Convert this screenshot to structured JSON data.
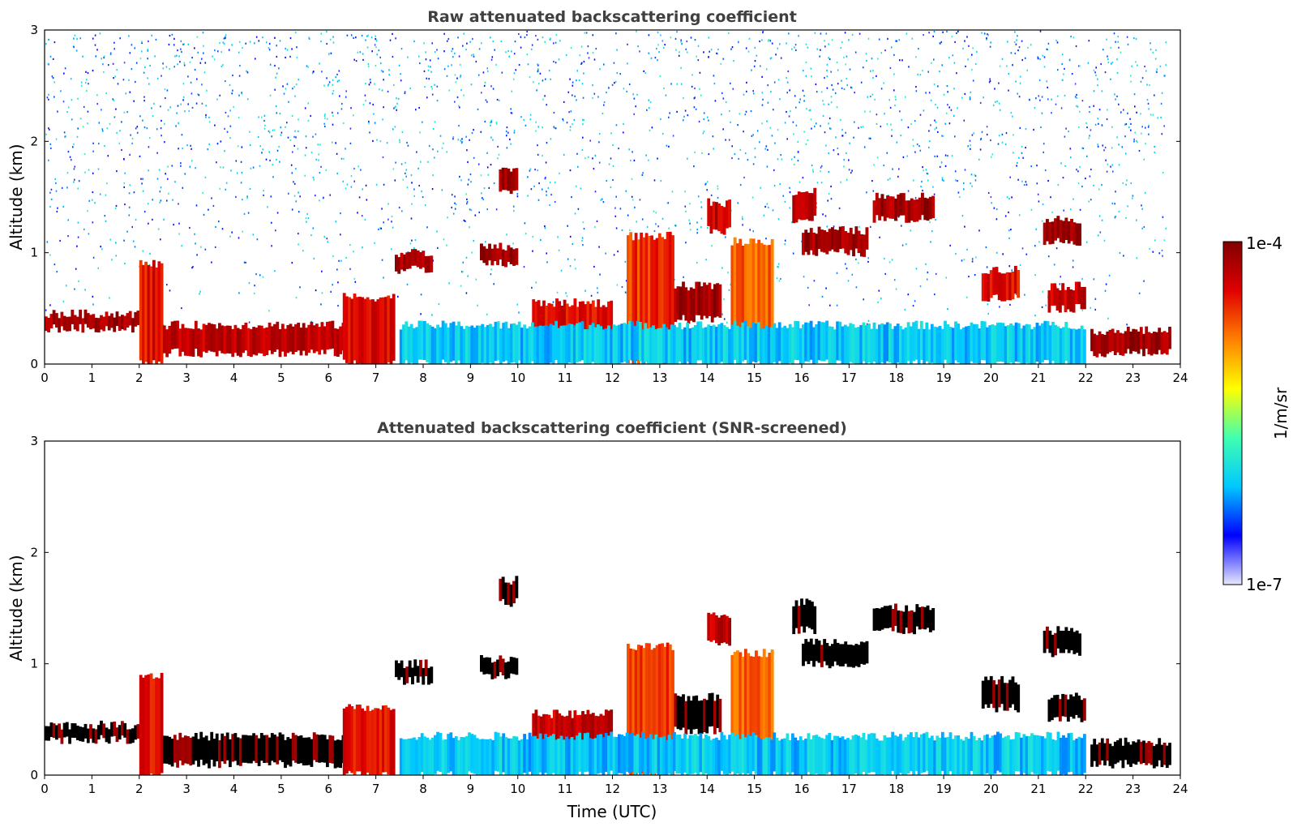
{
  "chart_data": [
    {
      "type": "heatmap",
      "title": "Raw attenuated backscattering coefficient",
      "xlabel": "",
      "ylabel": "Altitude (km)",
      "xlim": [
        0,
        24
      ],
      "ylim": [
        0,
        3
      ],
      "xticks": [
        "0",
        "1",
        "2",
        "3",
        "4",
        "5",
        "6",
        "7",
        "8",
        "9",
        "10",
        "11",
        "12",
        "13",
        "14",
        "15",
        "16",
        "17",
        "18",
        "19",
        "20",
        "21",
        "22",
        "23",
        "24"
      ],
      "yticks": [
        "0",
        "1",
        "2",
        "3"
      ],
      "noise": "high",
      "layers": [
        {
          "x": [
            0,
            2.0
          ],
          "y": [
            0.32,
            0.45
          ],
          "level": 0.95
        },
        {
          "x": [
            2.0,
            2.5
          ],
          "y": [
            0.0,
            0.9
          ],
          "level": 0.85
        },
        {
          "x": [
            2.5,
            6.5
          ],
          "y": [
            0.1,
            0.35
          ],
          "level": 0.9
        },
        {
          "x": [
            6.3,
            7.4
          ],
          "y": [
            0.0,
            0.6
          ],
          "level": 0.85
        },
        {
          "x": [
            7.4,
            8.2
          ],
          "y": [
            0.85,
            1.0
          ],
          "level": 0.95
        },
        {
          "x": [
            9.2,
            10.0
          ],
          "y": [
            0.9,
            1.05
          ],
          "level": 0.95
        },
        {
          "x": [
            9.6,
            10.0
          ],
          "y": [
            1.55,
            1.75
          ],
          "level": 0.95
        },
        {
          "x": [
            10.3,
            12.0
          ],
          "y": [
            0.25,
            0.55
          ],
          "level": 0.85
        },
        {
          "x": [
            12.3,
            13.3
          ],
          "y": [
            0.0,
            1.15
          ],
          "level": 0.8
        },
        {
          "x": [
            13.3,
            14.3
          ],
          "y": [
            0.4,
            0.7
          ],
          "level": 0.95
        },
        {
          "x": [
            14.0,
            14.5
          ],
          "y": [
            1.2,
            1.45
          ],
          "level": 0.9
        },
        {
          "x": [
            14.5,
            15.4
          ],
          "y": [
            0.1,
            1.1
          ],
          "level": 0.75
        },
        {
          "x": [
            15.8,
            16.3
          ],
          "y": [
            1.3,
            1.55
          ],
          "level": 0.9
        },
        {
          "x": [
            16.0,
            17.4
          ],
          "y": [
            1.0,
            1.2
          ],
          "level": 0.95
        },
        {
          "x": [
            17.5,
            18.8
          ],
          "y": [
            1.3,
            1.5
          ],
          "level": 0.95
        },
        {
          "x": [
            19.8,
            20.6
          ],
          "y": [
            0.6,
            0.85
          ],
          "level": 0.85
        },
        {
          "x": [
            21.1,
            21.9
          ],
          "y": [
            1.1,
            1.3
          ],
          "level": 0.95
        },
        {
          "x": [
            21.2,
            22.0
          ],
          "y": [
            0.5,
            0.7
          ],
          "level": 0.9
        },
        {
          "x": [
            22.1,
            23.8
          ],
          "y": [
            0.1,
            0.3
          ],
          "level": 0.95
        },
        {
          "x": [
            7.5,
            22.0
          ],
          "y": [
            0.0,
            0.35
          ],
          "level": 0.3
        }
      ]
    },
    {
      "type": "heatmap",
      "title": "Attenuated backscattering coefficient (SNR-screened)",
      "xlabel": "Time (UTC)",
      "ylabel": "Altitude (km)",
      "xlim": [
        0,
        24
      ],
      "ylim": [
        0,
        3
      ],
      "xticks": [
        "0",
        "1",
        "2",
        "3",
        "4",
        "5",
        "6",
        "7",
        "8",
        "9",
        "10",
        "11",
        "12",
        "13",
        "14",
        "15",
        "16",
        "17",
        "18",
        "19",
        "20",
        "21",
        "22",
        "23",
        "24"
      ],
      "yticks": [
        "0",
        "1",
        "2",
        "3"
      ],
      "noise": "screened",
      "layers": [
        {
          "x": [
            0,
            2.0
          ],
          "y": [
            0.32,
            0.45
          ],
          "level": 1.0
        },
        {
          "x": [
            2.0,
            2.5
          ],
          "y": [
            0.0,
            0.9
          ],
          "level": 0.85
        },
        {
          "x": [
            2.5,
            6.5
          ],
          "y": [
            0.1,
            0.35
          ],
          "level": 1.0
        },
        {
          "x": [
            6.3,
            7.4
          ],
          "y": [
            0.0,
            0.6
          ],
          "level": 0.85
        },
        {
          "x": [
            7.4,
            8.2
          ],
          "y": [
            0.85,
            1.0
          ],
          "level": 1.0
        },
        {
          "x": [
            9.2,
            10.0
          ],
          "y": [
            0.9,
            1.05
          ],
          "level": 1.0
        },
        {
          "x": [
            9.6,
            10.0
          ],
          "y": [
            1.55,
            1.75
          ],
          "level": 1.0
        },
        {
          "x": [
            10.3,
            12.0
          ],
          "y": [
            0.25,
            0.55
          ],
          "level": 0.9
        },
        {
          "x": [
            12.3,
            13.3
          ],
          "y": [
            0.0,
            1.15
          ],
          "level": 0.8
        },
        {
          "x": [
            13.3,
            14.3
          ],
          "y": [
            0.4,
            0.7
          ],
          "level": 1.0
        },
        {
          "x": [
            14.0,
            14.5
          ],
          "y": [
            1.2,
            1.45
          ],
          "level": 0.9
        },
        {
          "x": [
            14.5,
            15.4
          ],
          "y": [
            0.1,
            1.1
          ],
          "level": 0.75
        },
        {
          "x": [
            15.8,
            16.3
          ],
          "y": [
            1.3,
            1.55
          ],
          "level": 1.0
        },
        {
          "x": [
            16.0,
            17.4
          ],
          "y": [
            1.0,
            1.2
          ],
          "level": 1.0
        },
        {
          "x": [
            17.5,
            18.8
          ],
          "y": [
            1.3,
            1.5
          ],
          "level": 1.0
        },
        {
          "x": [
            19.8,
            20.6
          ],
          "y": [
            0.6,
            0.85
          ],
          "level": 1.0
        },
        {
          "x": [
            21.1,
            21.9
          ],
          "y": [
            1.1,
            1.3
          ],
          "level": 1.0
        },
        {
          "x": [
            21.2,
            22.0
          ],
          "y": [
            0.5,
            0.7
          ],
          "level": 1.0
        },
        {
          "x": [
            22.1,
            23.8
          ],
          "y": [
            0.1,
            0.3
          ],
          "level": 1.0
        },
        {
          "x": [
            7.5,
            22.0
          ],
          "y": [
            0.0,
            0.35
          ],
          "level": 0.3
        }
      ]
    }
  ],
  "colorbar": {
    "label": "1/m/sr",
    "max_label": "1e-4",
    "min_label": "1e-7",
    "colormap": [
      "#e8e8ff",
      "#0000ff",
      "#00c8ff",
      "#40ffb0",
      "#ffff00",
      "#ff8000",
      "#e00000",
      "#800000"
    ],
    "saturated_color": "#000000"
  }
}
